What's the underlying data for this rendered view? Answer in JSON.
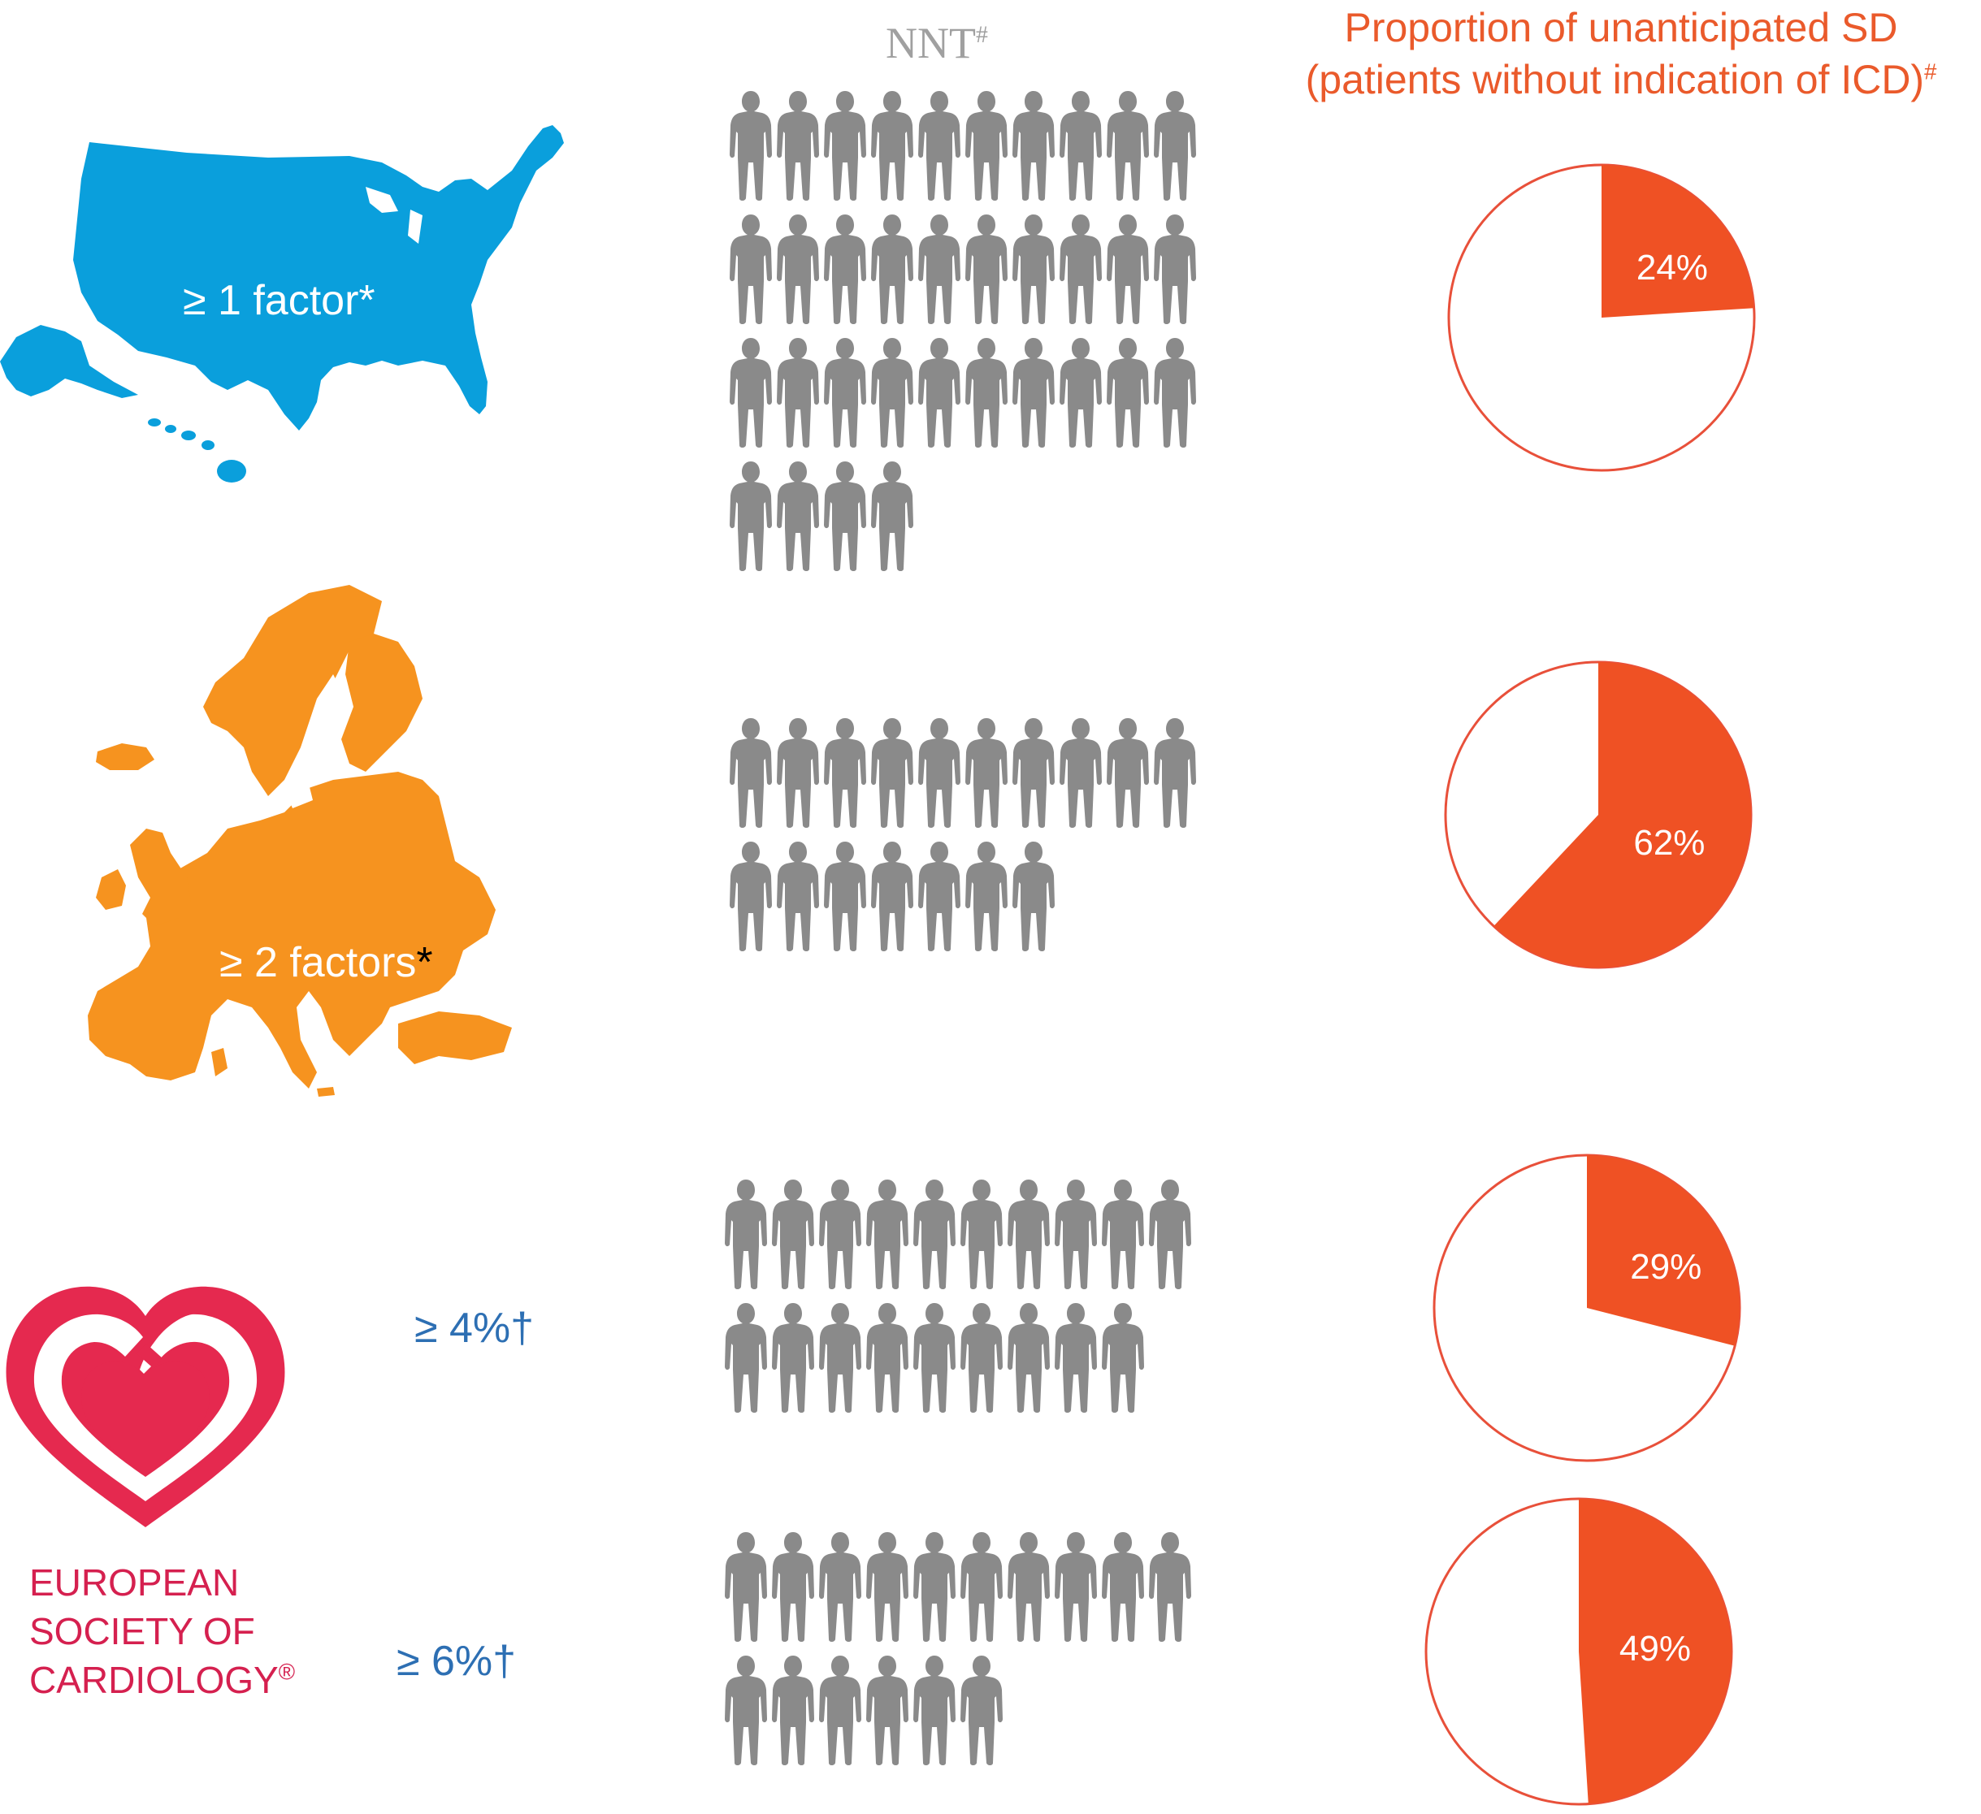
{
  "headers": {
    "nnt": "NNT",
    "nnt_sup": "#",
    "proportion_line1": "Proportion of unanticipated SD",
    "proportion_line2": "(patients without indication of ICD)",
    "proportion_sup": "#"
  },
  "regions": {
    "usa": {
      "label": "≥ 1 factor*",
      "color": "#0a9fdc"
    },
    "europe": {
      "label": "≥ 2 factors",
      "label_star": "*",
      "color": "#f6931f"
    }
  },
  "esc": {
    "line1": "EUROPEAN",
    "line2": "SOCIETY OF",
    "line3": "CARDIOLOGY",
    "mark": "®",
    "threshold_a": "≥ 4%†",
    "threshold_b": "≥ 6%†",
    "color": "#e5294f"
  },
  "rows": [
    {
      "nnt_count": 34,
      "pie_value": 24,
      "pie_label": "24%"
    },
    {
      "nnt_count": 17,
      "pie_value": 62,
      "pie_label": "62%"
    },
    {
      "nnt_count": 19,
      "pie_value": 29,
      "pie_label": "29%"
    },
    {
      "nnt_count": 16,
      "pie_value": 49,
      "pie_label": "49%"
    }
  ],
  "colors": {
    "person": "#8a8a8a",
    "pie_fill": "#ef5124",
    "pie_stroke": "#e8503a"
  }
}
